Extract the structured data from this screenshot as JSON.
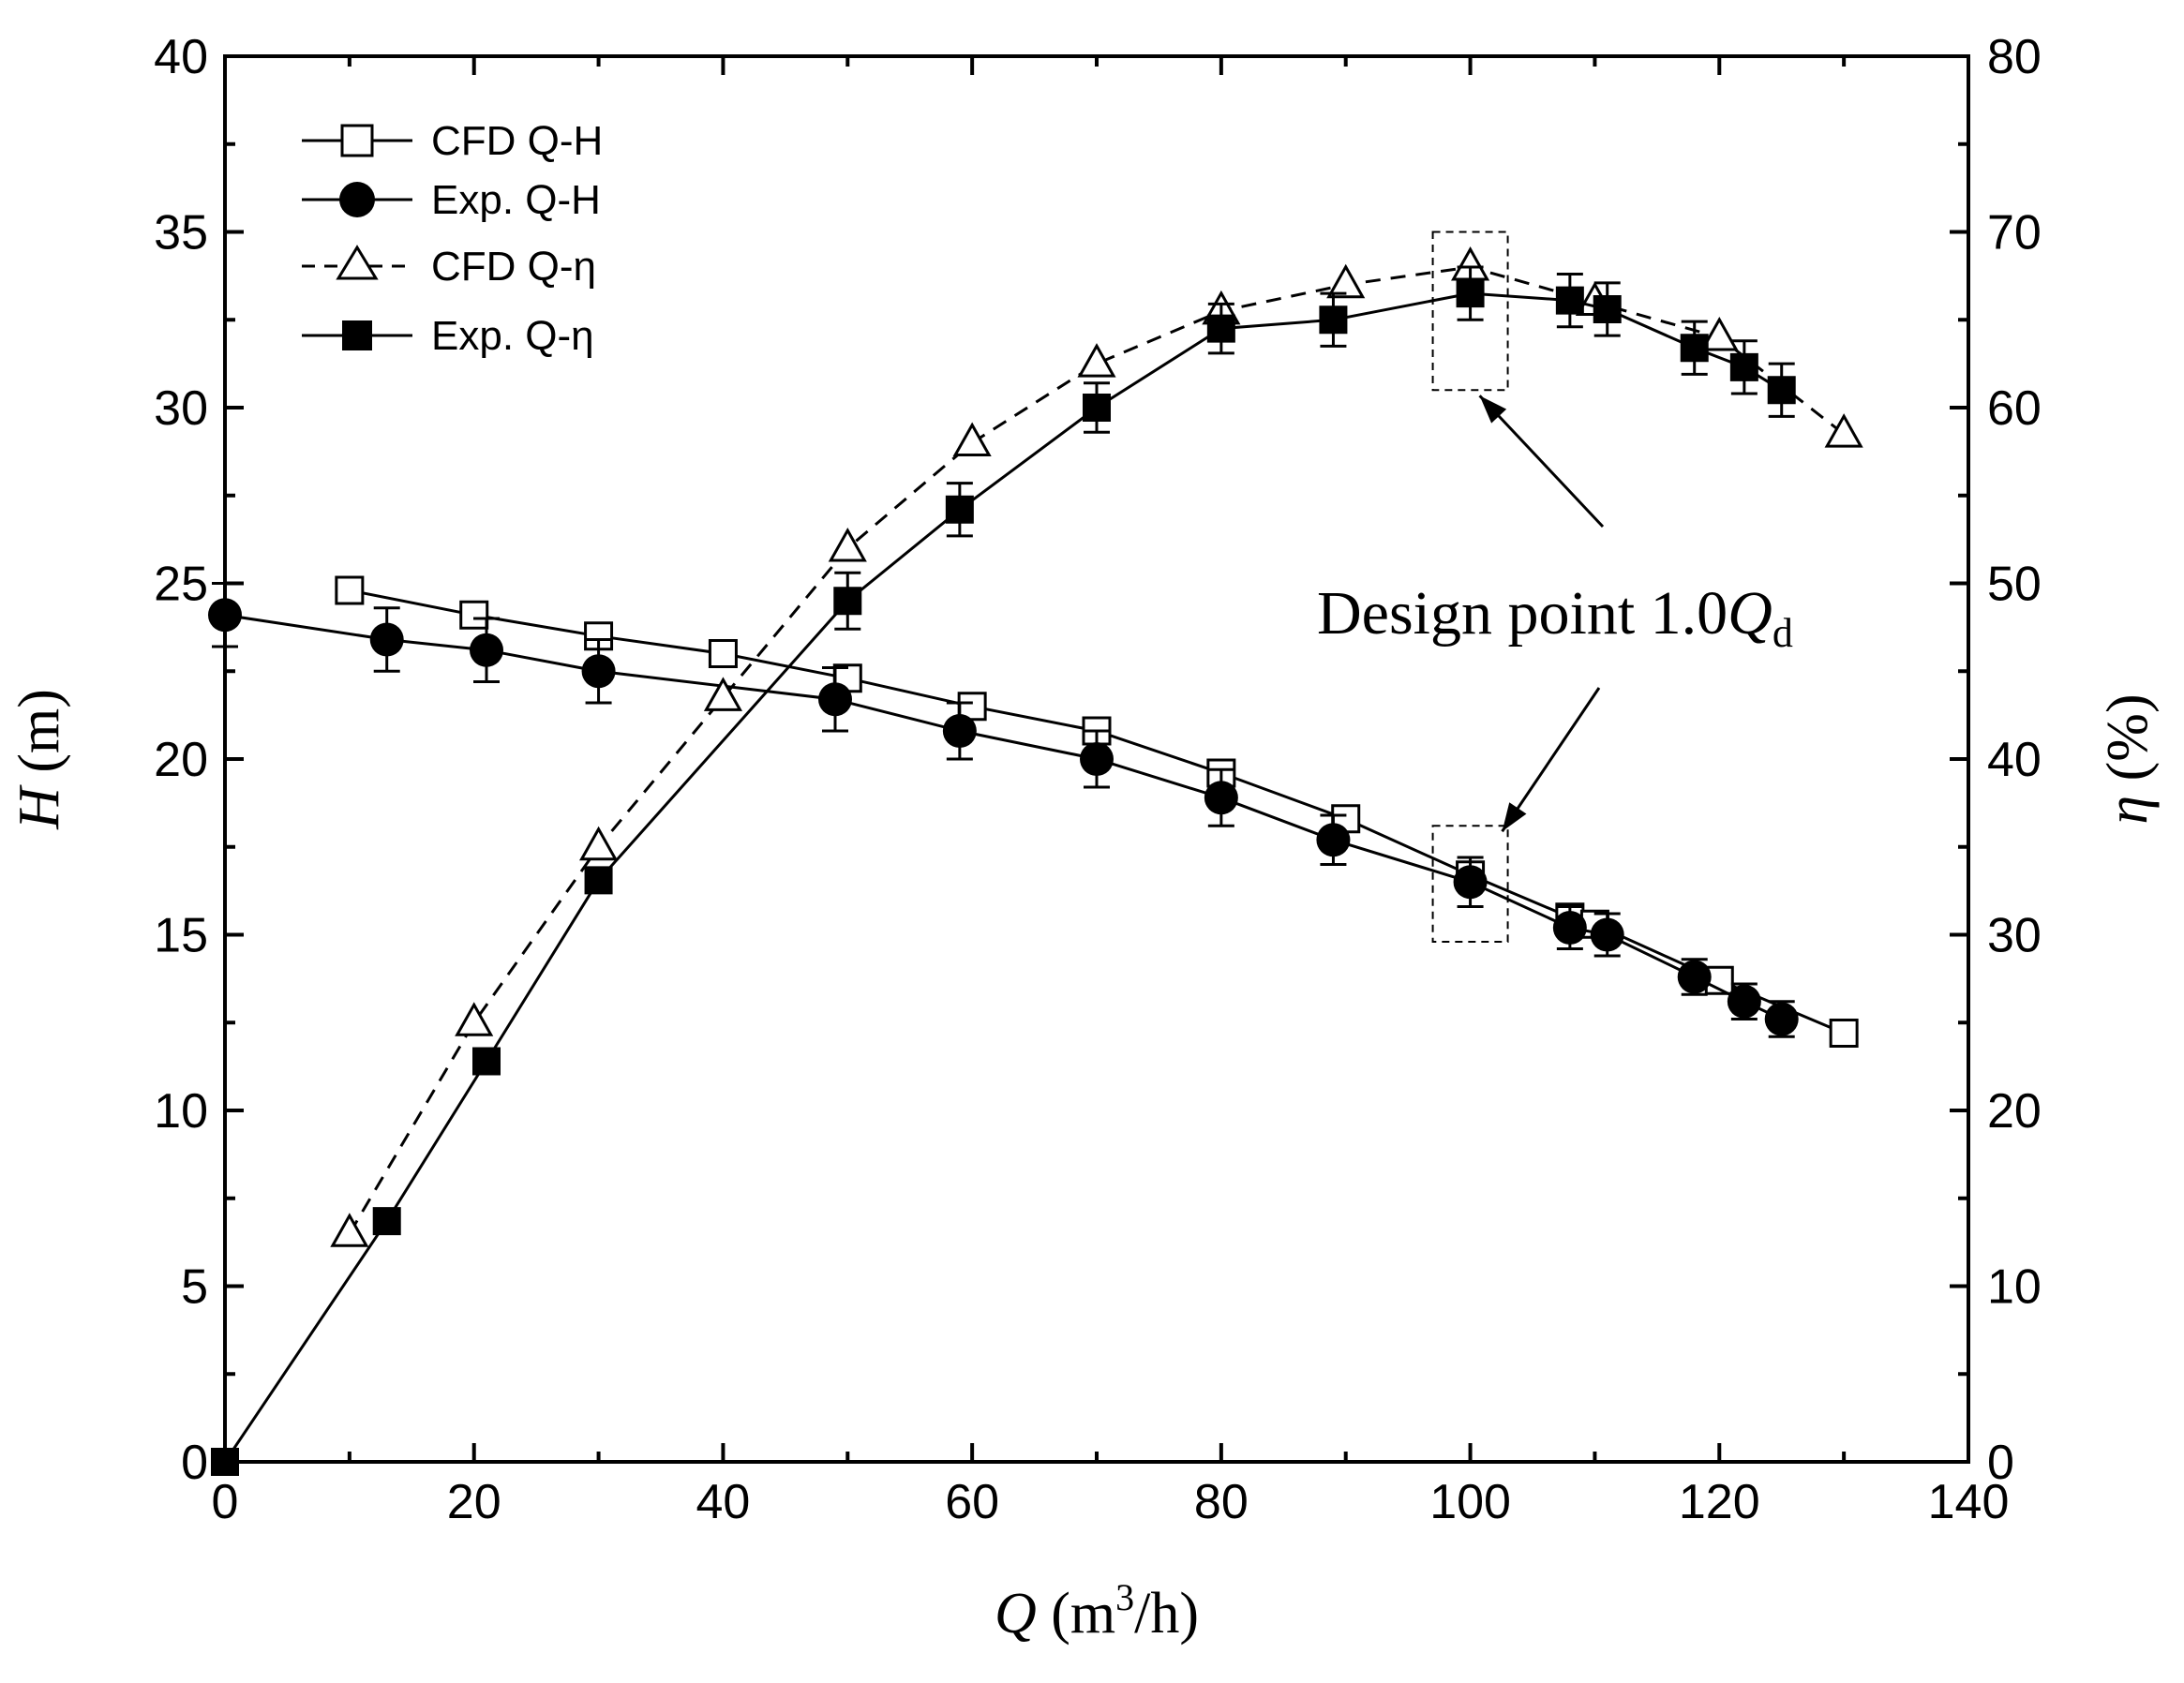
{
  "chart_data": {
    "type": "line",
    "x_axis": {
      "label_var": "Q",
      "label_unit_pre": " (m",
      "label_sup": "3",
      "label_unit_post": "/h)",
      "range": [
        0,
        140
      ],
      "ticks": [
        "0",
        "20",
        "40",
        "60",
        "80",
        "100",
        "120",
        "140"
      ]
    },
    "y_left": {
      "label_var": "H",
      "label_unit": " (m)",
      "range": [
        0,
        40
      ],
      "ticks": [
        "0",
        "5",
        "10",
        "15",
        "20",
        "25",
        "30",
        "35",
        "40"
      ]
    },
    "y_right": {
      "label_var": "η",
      "label_unit": " (%)",
      "range": [
        0,
        80
      ],
      "ticks": [
        "0",
        "10",
        "20",
        "30",
        "40",
        "50",
        "60",
        "70",
        "80"
      ]
    },
    "series": [
      {
        "name": "CFD Q-H",
        "axis": "left",
        "marker": "open-square",
        "line": "solid",
        "x": [
          10,
          20,
          30,
          40,
          50,
          60,
          70,
          80,
          90,
          100,
          108,
          110,
          120,
          130
        ],
        "y": [
          24.8,
          24.1,
          23.5,
          23.0,
          22.3,
          21.5,
          20.8,
          19.6,
          18.3,
          16.7,
          15.5,
          15.3,
          13.7,
          12.2
        ]
      },
      {
        "name": "Exp. Q-H",
        "axis": "left",
        "marker": "filled-circle",
        "line": "solid",
        "x": [
          0,
          13,
          21,
          30,
          49,
          59,
          70,
          80,
          89,
          100,
          108,
          111,
          118,
          122,
          125
        ],
        "y": [
          24.1,
          23.4,
          23.1,
          22.5,
          21.7,
          20.8,
          20.0,
          18.9,
          17.7,
          16.5,
          15.2,
          15.0,
          13.8,
          13.1,
          12.6
        ],
        "err": [
          0.9,
          0.9,
          0.9,
          0.9,
          0.9,
          0.8,
          0.8,
          0.8,
          0.7,
          0.7,
          0.6,
          0.6,
          0.5,
          0.5,
          0.5
        ]
      },
      {
        "name": "CFD Q-η",
        "axis": "right",
        "marker": "open-triangle",
        "line": "dashed",
        "x": [
          10,
          20,
          30,
          40,
          50,
          60,
          70,
          80,
          90,
          100,
          110,
          120,
          130
        ],
        "y": [
          13,
          25,
          35,
          43.5,
          52,
          58,
          62.5,
          65.5,
          67,
          68,
          66,
          64,
          58.5
        ]
      },
      {
        "name": "Exp. Q-η",
        "axis": "right",
        "marker": "filled-square",
        "line": "solid",
        "x": [
          0,
          13,
          21,
          30,
          50,
          59,
          70,
          80,
          89,
          100,
          108,
          111,
          118,
          122,
          125
        ],
        "y": [
          0,
          13.7,
          22.8,
          33.1,
          49,
          54.2,
          60,
          64.5,
          65,
          66.5,
          66.1,
          65.6,
          63.4,
          62.3,
          61
        ],
        "err": [
          0,
          0,
          0,
          0,
          1.6,
          1.5,
          1.4,
          1.4,
          1.5,
          1.5,
          1.5,
          1.5,
          1.5,
          1.5,
          1.5
        ]
      }
    ],
    "legend": {
      "position": "top-left",
      "entries": [
        "CFD Q-H",
        "Exp. Q-H",
        "CFD Q-η",
        "Exp. Q-η"
      ]
    },
    "annotation": {
      "text_main": "Design point 1.0",
      "text_var": "Q",
      "text_sub": "d",
      "target_x": 100,
      "box_eta": [
        61,
        70
      ],
      "box_h": [
        14.8,
        18.1
      ]
    }
  }
}
